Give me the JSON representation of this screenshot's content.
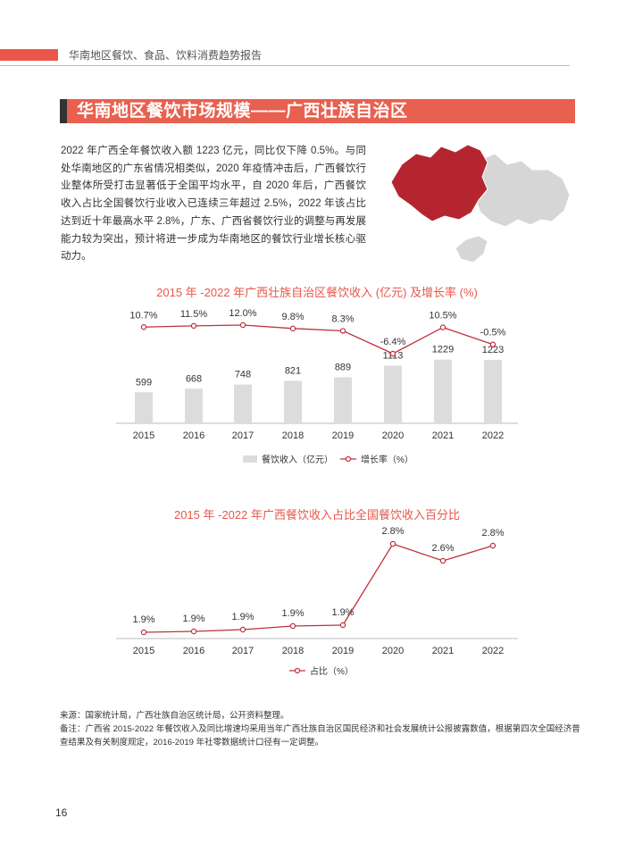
{
  "header": {
    "text": "华南地区餐饮、食品、饮料消费趋势报告"
  },
  "section": {
    "title": "华南地区餐饮市场规模——广西壮族自治区"
  },
  "intro": "2022 年广西全年餐饮收入额 1223 亿元，同比仅下降 0.5%。与同处华南地区的广东省情况相类似，2020 年疫情冲击后，广西餐饮行业整体所受打击显著低于全国平均水平，自 2020 年后，广西餐饮收入占比全国餐饮行业收入已连续三年超过 2.5%，2022 年该占比达到近十年最高水平 2.8%，广东、广西省餐饮行业的调整与再发展能力较为突出，预计将进一步成为华南地区的餐饮行业增长核心驱动力。",
  "colors": {
    "accent": "#e8574a",
    "line": "#c0303a",
    "bar": "#dcdcdc",
    "map_highlight": "#b5252f",
    "map_other": "#d6d6d6"
  },
  "chart_data": [
    {
      "type": "bar+line",
      "title": "2015 年 -2022 年广西壮族自治区餐饮收入 (亿元) 及增长率 (%)",
      "categories": [
        "2015",
        "2016",
        "2017",
        "2018",
        "2019",
        "2020",
        "2021",
        "2022"
      ],
      "series": [
        {
          "name": "餐饮收入（亿元）",
          "type": "bar",
          "values": [
            599,
            668,
            748,
            821,
            889,
            1113,
            1229,
            1223
          ],
          "labels": [
            "599",
            "668",
            "748",
            "821",
            "889",
            "1113",
            "1229",
            "1223"
          ]
        },
        {
          "name": "增长率（%）",
          "type": "line",
          "values": [
            10.7,
            11.5,
            12.0,
            9.8,
            8.3,
            -6.4,
            10.5,
            -0.5
          ],
          "labels": [
            "10.7%",
            "11.5%",
            "12.0%",
            "9.8%",
            "8.3%",
            "-6.4%",
            "10.5%",
            "-0.5%"
          ]
        }
      ],
      "legend_position": "bottom"
    },
    {
      "type": "line",
      "title": "2015 年 -2022 年广西餐饮收入占比全国餐饮收入百分比",
      "categories": [
        "2015",
        "2016",
        "2017",
        "2018",
        "2019",
        "2020",
        "2021",
        "2022"
      ],
      "series": [
        {
          "name": "占比（%）",
          "values": [
            1.9,
            1.9,
            1.9,
            1.9,
            1.9,
            2.8,
            2.6,
            2.8
          ],
          "labels": [
            "1.9%",
            "1.9%",
            "1.9%",
            "1.9%",
            "1.9%",
            "2.8%",
            "2.6%",
            "2.8%"
          ]
        }
      ],
      "legend_position": "bottom"
    }
  ],
  "notes": {
    "source": "来源：国家统计局，广西壮族自治区统计局，公开资料整理。",
    "remark": "备注：广西省 2015-2022 年餐饮收入及同比增速均采用当年广西壮族自治区国民经济和社会发展统计公报披露数值，根据第四次全国经济普查结果及有关制度规定，2016-2019 年社零数据统计口径有一定调整。"
  },
  "page_number": "16"
}
